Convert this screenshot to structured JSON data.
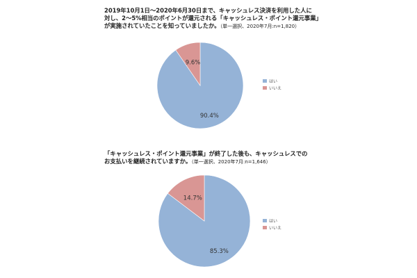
{
  "chart_data": [
    {
      "type": "pie",
      "title": "2019年10月1日～2020年6月30日まで、キャッシュレス決済を利用した人に\n対し、2～5%相当のポイントが還元される「キャッシュレス・ポイント還元事業」\nが実施されていたことを知っていましたか。",
      "title_note": "（単一選択、2020年7月:n=1,820）",
      "categories": [
        "はい",
        "いいえ"
      ],
      "values": [
        90.4,
        9.6
      ],
      "data_labels": [
        "90.4%",
        "9.6%"
      ],
      "colors": [
        "#95b3d7",
        "#d99694"
      ],
      "legend_position": "right"
    },
    {
      "type": "pie",
      "title": "「キャッシュレス・ポイント還元事業」が終了した後も、キャッシュレスでの\nお支払いを継続されていますか。",
      "title_note": "（単一選択、2020年7月:n=1,646）",
      "categories": [
        "はい",
        "いいえ"
      ],
      "values": [
        85.3,
        14.7
      ],
      "data_labels": [
        "85.3%",
        "14.7%"
      ],
      "colors": [
        "#95b3d7",
        "#d99694"
      ],
      "legend_position": "right"
    }
  ]
}
